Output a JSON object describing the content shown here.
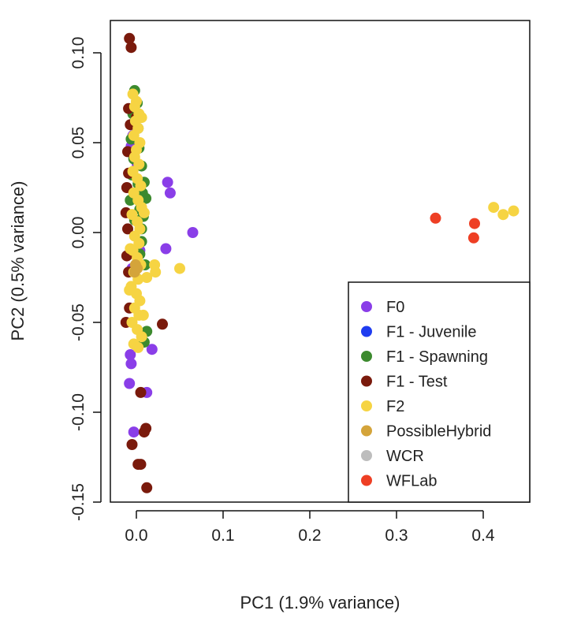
{
  "chart_data": {
    "type": "scatter",
    "xlabel": "PC1 (1.9% variance)",
    "ylabel": "PC2 (0.5% variance)",
    "xlim": [
      -0.015,
      0.455
    ],
    "ylim": [
      -0.15,
      0.12
    ],
    "x_ticks": [
      "0.0",
      "0.1",
      "0.2",
      "0.3",
      "0.4"
    ],
    "x_tick_values": [
      0.0,
      0.1,
      0.2,
      0.3,
      0.4
    ],
    "y_ticks": [
      "-0.15",
      "-0.10",
      "-0.05",
      "0.00",
      "0.05",
      "0.10"
    ],
    "y_tick_values": [
      -0.15,
      -0.1,
      -0.05,
      0.0,
      0.05,
      0.1
    ],
    "grid": false,
    "legend_position": "bottom-right",
    "series": [
      {
        "name": "F0",
        "color": "#8a3ee8",
        "points": [
          [
            0.036,
            0.028
          ],
          [
            0.039,
            0.022
          ],
          [
            0.065,
            0.0
          ],
          [
            0.034,
            -0.009
          ],
          [
            0.018,
            -0.065
          ],
          [
            0.012,
            -0.089
          ],
          [
            -0.003,
            -0.111
          ],
          [
            -0.008,
            -0.084
          ],
          [
            -0.006,
            -0.073
          ],
          [
            -0.007,
            -0.068
          ],
          [
            -0.004,
            0.054
          ],
          [
            -0.006,
            0.048
          ],
          [
            0.001,
            0.038
          ],
          [
            0.004,
            -0.01
          ],
          [
            -0.005,
            -0.02
          ]
        ]
      },
      {
        "name": "F1 - Juvenile",
        "color": "#1f3cf0",
        "points": []
      },
      {
        "name": "F1 - Spawning",
        "color": "#3c8a2e",
        "points": [
          [
            -0.002,
            0.079
          ],
          [
            0.001,
            0.072
          ],
          [
            -0.004,
            0.066
          ],
          [
            0.002,
            0.058
          ],
          [
            -0.006,
            0.052
          ],
          [
            0.003,
            0.047
          ],
          [
            -0.003,
            0.041
          ],
          [
            0.006,
            0.037
          ],
          [
            -0.005,
            0.032
          ],
          [
            0.002,
            0.027
          ],
          [
            0.007,
            0.022
          ],
          [
            -0.007,
            0.018
          ],
          [
            0.004,
            0.013
          ],
          [
            -0.002,
            0.007
          ],
          [
            0.006,
            0.002
          ],
          [
            0.009,
            0.028
          ],
          [
            0.011,
            0.019
          ],
          [
            0.008,
            0.009
          ],
          [
            0.006,
            -0.005
          ],
          [
            0.004,
            -0.012
          ],
          [
            0.01,
            -0.018
          ],
          [
            0.012,
            -0.055
          ],
          [
            0.009,
            -0.061
          ]
        ]
      },
      {
        "name": "F1 - Test",
        "color": "#7a1a0c",
        "points": [
          [
            -0.008,
            0.108
          ],
          [
            -0.006,
            0.103
          ],
          [
            -0.009,
            0.069
          ],
          [
            -0.007,
            0.06
          ],
          [
            -0.01,
            0.045
          ],
          [
            -0.009,
            0.033
          ],
          [
            -0.011,
            0.025
          ],
          [
            -0.012,
            0.011
          ],
          [
            -0.01,
            0.002
          ],
          [
            -0.011,
            -0.013
          ],
          [
            -0.009,
            -0.022
          ],
          [
            -0.008,
            -0.042
          ],
          [
            -0.012,
            -0.05
          ],
          [
            0.03,
            -0.051
          ],
          [
            0.005,
            -0.089
          ],
          [
            0.011,
            -0.109
          ],
          [
            0.009,
            -0.111
          ],
          [
            -0.005,
            -0.118
          ],
          [
            0.002,
            -0.129
          ],
          [
            0.005,
            -0.129
          ],
          [
            0.012,
            -0.142
          ],
          [
            0.0,
            0.064
          ]
        ]
      },
      {
        "name": "F2",
        "color": "#f6d443",
        "points": [
          [
            -0.004,
            0.077
          ],
          [
            0.0,
            0.073
          ],
          [
            -0.002,
            0.07
          ],
          [
            0.003,
            0.066
          ],
          [
            -0.001,
            0.062
          ],
          [
            0.006,
            0.064
          ],
          [
            0.002,
            0.058
          ],
          [
            -0.003,
            0.054
          ],
          [
            0.004,
            0.05
          ],
          [
            0.0,
            0.046
          ],
          [
            -0.002,
            0.042
          ],
          [
            0.003,
            0.038
          ],
          [
            -0.004,
            0.034
          ],
          [
            0.001,
            0.03
          ],
          [
            0.005,
            0.026
          ],
          [
            -0.003,
            0.022
          ],
          [
            0.002,
            0.018
          ],
          [
            0.006,
            0.014
          ],
          [
            -0.005,
            0.01
          ],
          [
            0.001,
            0.006
          ],
          [
            0.004,
            0.002
          ],
          [
            -0.002,
            -0.002
          ],
          [
            0.003,
            -0.006
          ],
          [
            -0.004,
            -0.01
          ],
          [
            0.001,
            -0.014
          ],
          [
            0.005,
            -0.018
          ],
          [
            -0.003,
            -0.022
          ],
          [
            0.002,
            -0.026
          ],
          [
            -0.006,
            -0.03
          ],
          [
            0.0,
            -0.034
          ],
          [
            0.004,
            -0.038
          ],
          [
            -0.002,
            -0.042
          ],
          [
            0.003,
            -0.046
          ],
          [
            -0.005,
            -0.05
          ],
          [
            0.001,
            -0.054
          ],
          [
            0.006,
            -0.058
          ],
          [
            -0.003,
            -0.062
          ],
          [
            0.008,
            -0.046
          ],
          [
            0.002,
            -0.064
          ],
          [
            -0.008,
            -0.032
          ],
          [
            0.022,
            -0.022
          ],
          [
            0.021,
            -0.018
          ],
          [
            0.05,
            -0.02
          ],
          [
            0.012,
            -0.025
          ],
          [
            -0.007,
            -0.009
          ],
          [
            0.009,
            0.011
          ],
          [
            0.412,
            0.014
          ],
          [
            0.423,
            0.01
          ],
          [
            0.435,
            0.012
          ]
        ]
      },
      {
        "name": "PossibleHybrid",
        "color": "#d4a43a",
        "points": [
          [
            -0.001,
            -0.018
          ],
          [
            -0.002,
            -0.022
          ],
          [
            0.001,
            -0.02
          ]
        ]
      },
      {
        "name": "WCR",
        "color": "#bdbdbd",
        "points": []
      },
      {
        "name": "WFLab",
        "color": "#ee3f24",
        "points": [
          [
            0.345,
            0.008
          ],
          [
            0.39,
            0.005
          ],
          [
            0.389,
            -0.003
          ]
        ]
      }
    ]
  }
}
